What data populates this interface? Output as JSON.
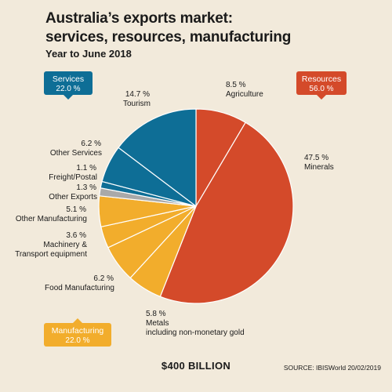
{
  "title_lines": [
    "Australia’s exports market:",
    "services, resources, manufacturing"
  ],
  "subtitle": "Year to June 2018",
  "total": "$400 BILLION",
  "source": "SOURCE: IBISWorld 20/02/2019",
  "colors": {
    "services": "#0e6e96",
    "resources": "#d44a2a",
    "manufacturing": "#f2ad2c",
    "other_exports": "#a9a9a9",
    "background": "#f2eadb"
  },
  "chart_data": {
    "type": "pie",
    "total_label": "$400 BILLION",
    "categories": [
      {
        "name": "Services",
        "value": 22.0,
        "label": "22.0 %"
      },
      {
        "name": "Resources",
        "value": 56.0,
        "label": "56.0 %"
      },
      {
        "name": "Manufacturing",
        "value": 22.0,
        "label": "22.0 %"
      }
    ],
    "slices": [
      {
        "name": "Agriculture",
        "value": 8.5,
        "label": "8.5 %",
        "category": "Resources",
        "color": "#d44a2a"
      },
      {
        "name": "Minerals",
        "value": 47.5,
        "label": "47.5 %",
        "category": "Resources",
        "color": "#d44a2a"
      },
      {
        "name": "Metals including non-monetary gold",
        "value": 5.8,
        "label": "5.8 %",
        "category": "Manufacturing",
        "color": "#f2ad2c"
      },
      {
        "name": "Food Manufacturing",
        "value": 6.2,
        "label": "6.2 %",
        "category": "Manufacturing",
        "color": "#f2ad2c"
      },
      {
        "name": "Machinery & Transport equipment",
        "value": 3.6,
        "label": "3.6 %",
        "category": "Manufacturing",
        "color": "#f2ad2c"
      },
      {
        "name": "Other Manufacturing",
        "value": 5.1,
        "label": "5.1 %",
        "category": "Manufacturing",
        "color": "#f2ad2c"
      },
      {
        "name": "Other Exports",
        "value": 1.3,
        "label": "1.3 %",
        "category": "",
        "color": "#a9a9a9"
      },
      {
        "name": "Freight/Postal",
        "value": 1.1,
        "label": "1.1 %",
        "category": "Services",
        "color": "#0e6e96"
      },
      {
        "name": "Other Services",
        "value": 6.2,
        "label": "6.2 %",
        "category": "Services",
        "color": "#0e6e96"
      },
      {
        "name": "Tourism",
        "value": 14.7,
        "label": "14.7 %",
        "category": "Services",
        "color": "#0e6e96"
      }
    ],
    "slice_labels": [
      {
        "pct": "8.5 %",
        "name_lines": [
          "Agriculture"
        ],
        "anchor": "start"
      },
      {
        "pct": "47.5 %",
        "name_lines": [
          "Minerals"
        ],
        "anchor": "start"
      },
      {
        "pct": "5.8 %",
        "name_lines": [
          "Metals",
          "including non-monetary gold"
        ],
        "anchor": "start"
      },
      {
        "pct": "6.2 %",
        "name_lines": [
          "Food Manufacturing"
        ],
        "anchor": "end"
      },
      {
        "pct": "3.6 %",
        "name_lines": [
          "Machinery &",
          "Transport equipment"
        ],
        "anchor": "end"
      },
      {
        "pct": "5.1 %",
        "name_lines": [
          "Other Manufacturing"
        ],
        "anchor": "end"
      },
      {
        "pct": "1.3 %",
        "name_lines": [
          "Other Exports"
        ],
        "anchor": "end"
      },
      {
        "pct": "1.1 %",
        "name_lines": [
          "Freight/Postal"
        ],
        "anchor": "end"
      },
      {
        "pct": "6.2 %",
        "name_lines": [
          "Other Services"
        ],
        "anchor": "end"
      },
      {
        "pct": "14.7 %",
        "name_lines": [
          "Tourism"
        ],
        "anchor": "end"
      }
    ],
    "callouts": [
      {
        "title": "Services",
        "pct": "22.0 %",
        "color": "#0e6e96"
      },
      {
        "title": "Resources",
        "pct": "56.0 %",
        "color": "#d44a2a"
      },
      {
        "title": "Manufacturing",
        "pct": "22.0 %",
        "color": "#f2ad2c"
      }
    ]
  }
}
